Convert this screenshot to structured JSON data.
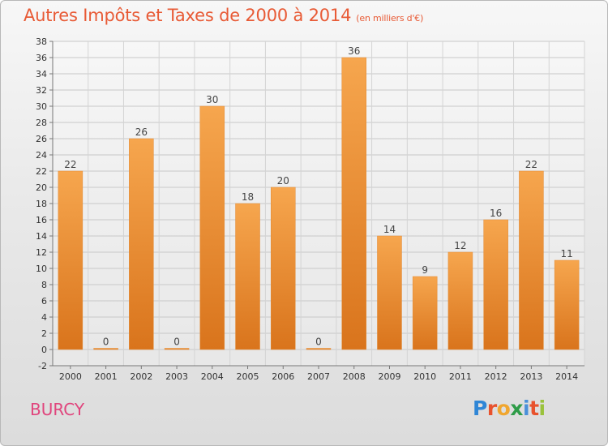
{
  "chart_title": "Autres Impôts et Taxes de 2000 à 2014",
  "chart_unit": "(en milliers d'€)",
  "place_label": "BURCY",
  "logo": {
    "text": "Proxiti",
    "letter_colors": [
      "#2f86d6",
      "#e8522d",
      "#f0a62f",
      "#2e9c48",
      "#4a90d9",
      "#e8522d",
      "#9ac23c"
    ]
  },
  "colors": {
    "bar_top": "#f6a64e",
    "bar_bottom": "#d9741c",
    "title": "#e85a35",
    "place": "#e0457d"
  },
  "chart_data": {
    "type": "bar",
    "categories": [
      "2000",
      "2001",
      "2002",
      "2003",
      "2004",
      "2005",
      "2006",
      "2007",
      "2008",
      "2009",
      "2010",
      "2011",
      "2012",
      "2013",
      "2014"
    ],
    "values": [
      22,
      0,
      26,
      0,
      30,
      18,
      20,
      0,
      36,
      14,
      9,
      12,
      16,
      22,
      11
    ],
    "ylim": [
      -2,
      38
    ],
    "yticks": [
      -2,
      0,
      2,
      4,
      6,
      8,
      10,
      12,
      14,
      16,
      18,
      20,
      22,
      24,
      26,
      28,
      30,
      32,
      34,
      36,
      38
    ],
    "grid": true,
    "data_labels": true
  }
}
